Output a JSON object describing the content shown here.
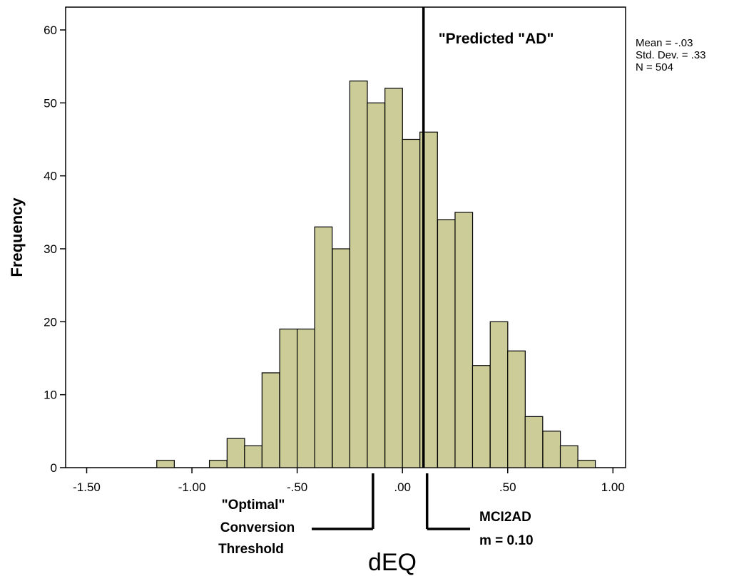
{
  "chart_data": {
    "type": "bar",
    "ylabel": "Frequency",
    "xlabel": "dEQ",
    "xlim": [
      -1.6,
      1.06
    ],
    "ylim": [
      0,
      60
    ],
    "x_ticks": [
      -1.5,
      -1.0,
      -0.5,
      0.0,
      0.5,
      1.0
    ],
    "x_tick_labels": [
      "-1.50",
      "-1.00",
      "-.50",
      ".00",
      ".50",
      "1.00"
    ],
    "y_ticks": [
      0,
      10,
      20,
      30,
      40,
      50,
      60
    ],
    "y_tick_labels": [
      "0",
      "10",
      "20",
      "30",
      "40",
      "50",
      "60"
    ],
    "bin_width": 0.0833,
    "bin_starts": [
      -1.167,
      -0.917,
      -0.833,
      -0.75,
      -0.667,
      -0.583,
      -0.5,
      -0.417,
      -0.333,
      -0.25,
      -0.167,
      -0.083,
      0.0,
      0.083,
      0.167,
      0.25,
      0.333,
      0.417,
      0.5,
      0.583,
      0.667,
      0.75,
      0.833
    ],
    "values": [
      1,
      1,
      4,
      3,
      13,
      19,
      19,
      33,
      30,
      53,
      50,
      52,
      45,
      46,
      34,
      35,
      14,
      20,
      16,
      7,
      5,
      3,
      1
    ],
    "bar_color": "#cccc99",
    "bar_edge_color": "#000000",
    "grid": false,
    "stats": [
      "Mean = -.03",
      "Std. Dev. = .33",
      "N = 504"
    ],
    "reference_lines": [
      {
        "x": 0.1,
        "label": "\"Predicted \"AD\""
      }
    ],
    "annotations": [
      {
        "x": -0.14,
        "lines": [
          "\"Optimal\"",
          "Conversion",
          "Threshold"
        ]
      },
      {
        "x": 0.1,
        "lines": [
          "MCI2AD",
          "m = 0.10"
        ]
      }
    ]
  }
}
